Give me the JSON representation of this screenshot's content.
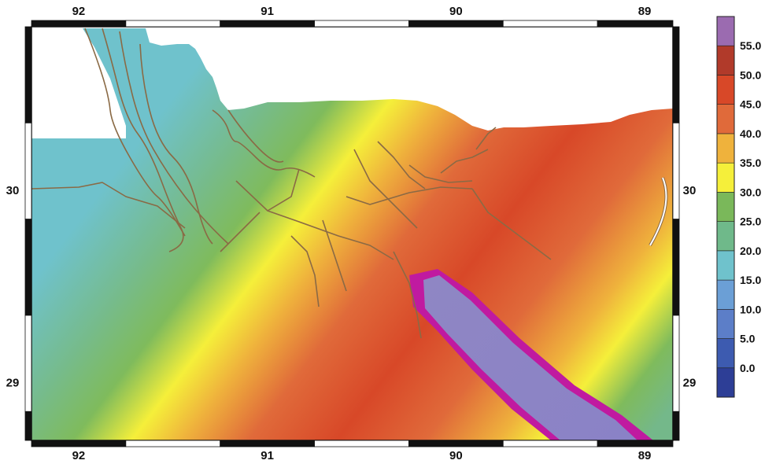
{
  "map": {
    "longitude_ticks": [
      {
        "value": 92,
        "label": "92"
      },
      {
        "value": 91,
        "label": "91"
      },
      {
        "value": 90,
        "label": "90"
      },
      {
        "value": 89,
        "label": "89"
      }
    ],
    "latitude_ticks": [
      {
        "value": 30,
        "label": "30"
      },
      {
        "value": 29,
        "label": "29"
      }
    ],
    "lon_range": [
      92.25,
      88.85
    ],
    "lat_range": [
      28.7,
      30.85
    ],
    "land_color": "#ffffff",
    "river_color": "#8a6a45",
    "frame_colors": [
      "#111111",
      "#ffffff"
    ]
  },
  "legend": {
    "bins": [
      {
        "label": "0.0",
        "color": "#2d3e96"
      },
      {
        "label": "5.0",
        "color": "#3d5bb0"
      },
      {
        "label": "10.0",
        "color": "#5c7ec8"
      },
      {
        "label": "15.0",
        "color": "#6b9fd6"
      },
      {
        "label": "20.0",
        "color": "#6fc2cc"
      },
      {
        "label": "25.0",
        "color": "#6fb98a"
      },
      {
        "label": "30.0",
        "color": "#7ab85a"
      },
      {
        "label": "35.0",
        "color": "#f5ef3a"
      },
      {
        "label": "40.0",
        "color": "#efb23c"
      },
      {
        "label": "45.0",
        "color": "#e06a3a"
      },
      {
        "label": "50.0",
        "color": "#d84828"
      },
      {
        "label": "55.0",
        "color": "#b13a2a"
      }
    ],
    "top_color": "#9b6bb0"
  }
}
